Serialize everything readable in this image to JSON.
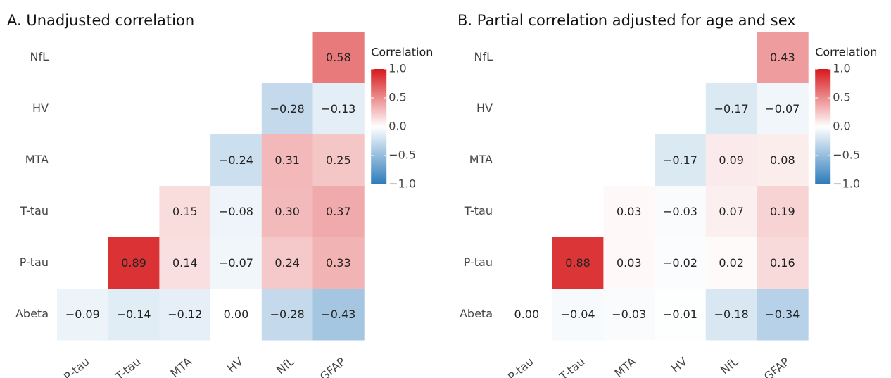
{
  "chart_data": [
    {
      "type": "heatmap",
      "title": "A. Unadjusted correlation",
      "colorbar_title": "Correlation",
      "x": [
        "P-tau",
        "T-tau",
        "MTA",
        "HV",
        "NfL",
        "GFAP"
      ],
      "y": [
        "NfL",
        "HV",
        "MTA",
        "T-tau",
        "P-tau",
        "Abeta"
      ],
      "values": [
        [
          null,
          null,
          null,
          null,
          null,
          0.58
        ],
        [
          null,
          null,
          null,
          null,
          -0.28,
          -0.13
        ],
        [
          null,
          null,
          null,
          -0.24,
          0.31,
          0.25
        ],
        [
          null,
          null,
          0.15,
          -0.08,
          0.3,
          0.37
        ],
        [
          null,
          0.89,
          0.14,
          -0.07,
          0.24,
          0.33
        ],
        [
          -0.09,
          -0.14,
          -0.12,
          0.0,
          -0.28,
          -0.43
        ]
      ],
      "value_labels": [
        [
          null,
          null,
          null,
          null,
          null,
          "0.58"
        ],
        [
          null,
          null,
          null,
          null,
          "−0.28",
          "−0.13"
        ],
        [
          null,
          null,
          null,
          "−0.24",
          "0.31",
          "0.25"
        ],
        [
          null,
          null,
          "0.15",
          "−0.08",
          "0.30",
          "0.37"
        ],
        [
          null,
          "0.89",
          "0.14",
          "−0.07",
          "0.24",
          "0.33"
        ],
        [
          "−0.09",
          "−0.14",
          "−0.12",
          "0.00",
          "−0.28",
          "−0.43"
        ]
      ],
      "zlim": [
        -1,
        1
      ],
      "zticks": [
        {
          "value": -1,
          "label": "−1.0"
        },
        {
          "value": -0.5,
          "label": "−0.5"
        },
        {
          "value": 0,
          "label": "0.0"
        },
        0.5,
        {
          "value": 1,
          "label": "1.0"
        }
      ],
      "colorscale": [
        "#2b7bba",
        "#ffffff",
        "#d7191c"
      ]
    },
    {
      "type": "heatmap",
      "title": "B. Partial correlation adjusted for age and sex",
      "colorbar_title": "Correlation",
      "x": [
        "P-tau",
        "T-tau",
        "MTA",
        "HV",
        "NfL",
        "GFAP"
      ],
      "y": [
        "NfL",
        "HV",
        "MTA",
        "T-tau",
        "P-tau",
        "Abeta"
      ],
      "values": [
        [
          null,
          null,
          null,
          null,
          null,
          0.43
        ],
        [
          null,
          null,
          null,
          null,
          -0.17,
          -0.07
        ],
        [
          null,
          null,
          null,
          -0.17,
          0.09,
          0.08
        ],
        [
          null,
          null,
          0.03,
          -0.03,
          0.07,
          0.19
        ],
        [
          null,
          0.88,
          0.03,
          -0.02,
          0.02,
          0.16
        ],
        [
          0.0,
          -0.04,
          -0.03,
          -0.01,
          -0.18,
          -0.34
        ]
      ],
      "value_labels": [
        [
          null,
          null,
          null,
          null,
          null,
          "0.43"
        ],
        [
          null,
          null,
          null,
          null,
          "−0.17",
          "−0.07"
        ],
        [
          null,
          null,
          null,
          "−0.17",
          "0.09",
          "0.08"
        ],
        [
          null,
          null,
          "0.03",
          "−0.03",
          "0.07",
          "0.19"
        ],
        [
          null,
          "0.88",
          "0.03",
          "−0.02",
          "0.02",
          "0.16"
        ],
        [
          "0.00",
          "−0.04",
          "−0.03",
          "−0.01",
          "−0.18",
          "−0.34"
        ]
      ],
      "zlim": [
        -1,
        1
      ],
      "zticks": [
        {
          "value": -1,
          "label": "−1.0"
        },
        {
          "value": -0.5,
          "label": "−0.5"
        },
        {
          "value": 0,
          "label": "0.0"
        },
        0.5,
        {
          "value": 1,
          "label": "1.0"
        }
      ],
      "colorscale": [
        "#2b7bba",
        "#ffffff",
        "#d7191c"
      ]
    }
  ]
}
